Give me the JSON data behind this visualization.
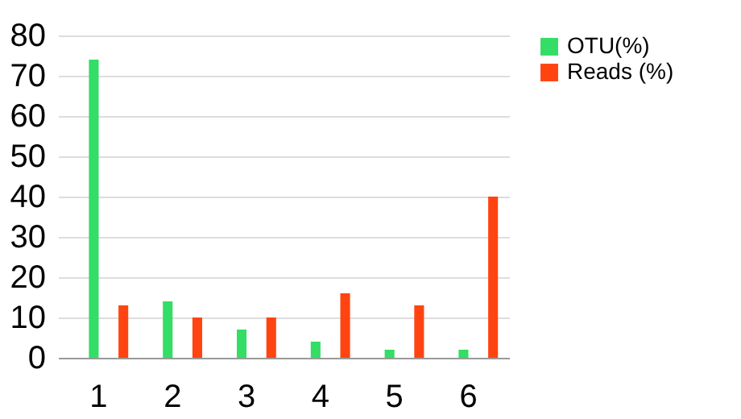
{
  "chart_data": {
    "type": "bar",
    "categories": [
      "1",
      "2",
      "3",
      "4",
      "5",
      "6"
    ],
    "series": [
      {
        "name": "OTU(%)",
        "color": "#33dd66",
        "values": [
          74,
          14,
          7,
          4,
          2,
          2
        ]
      },
      {
        "name": "Reads (%)",
        "color": "#ff4411",
        "values": [
          13,
          10,
          10,
          16,
          13,
          40
        ]
      }
    ],
    "ylim": [
      0,
      80
    ],
    "yticks": [
      0,
      10,
      20,
      30,
      40,
      50,
      60,
      70,
      80
    ],
    "grid": "y",
    "legend": "right"
  }
}
